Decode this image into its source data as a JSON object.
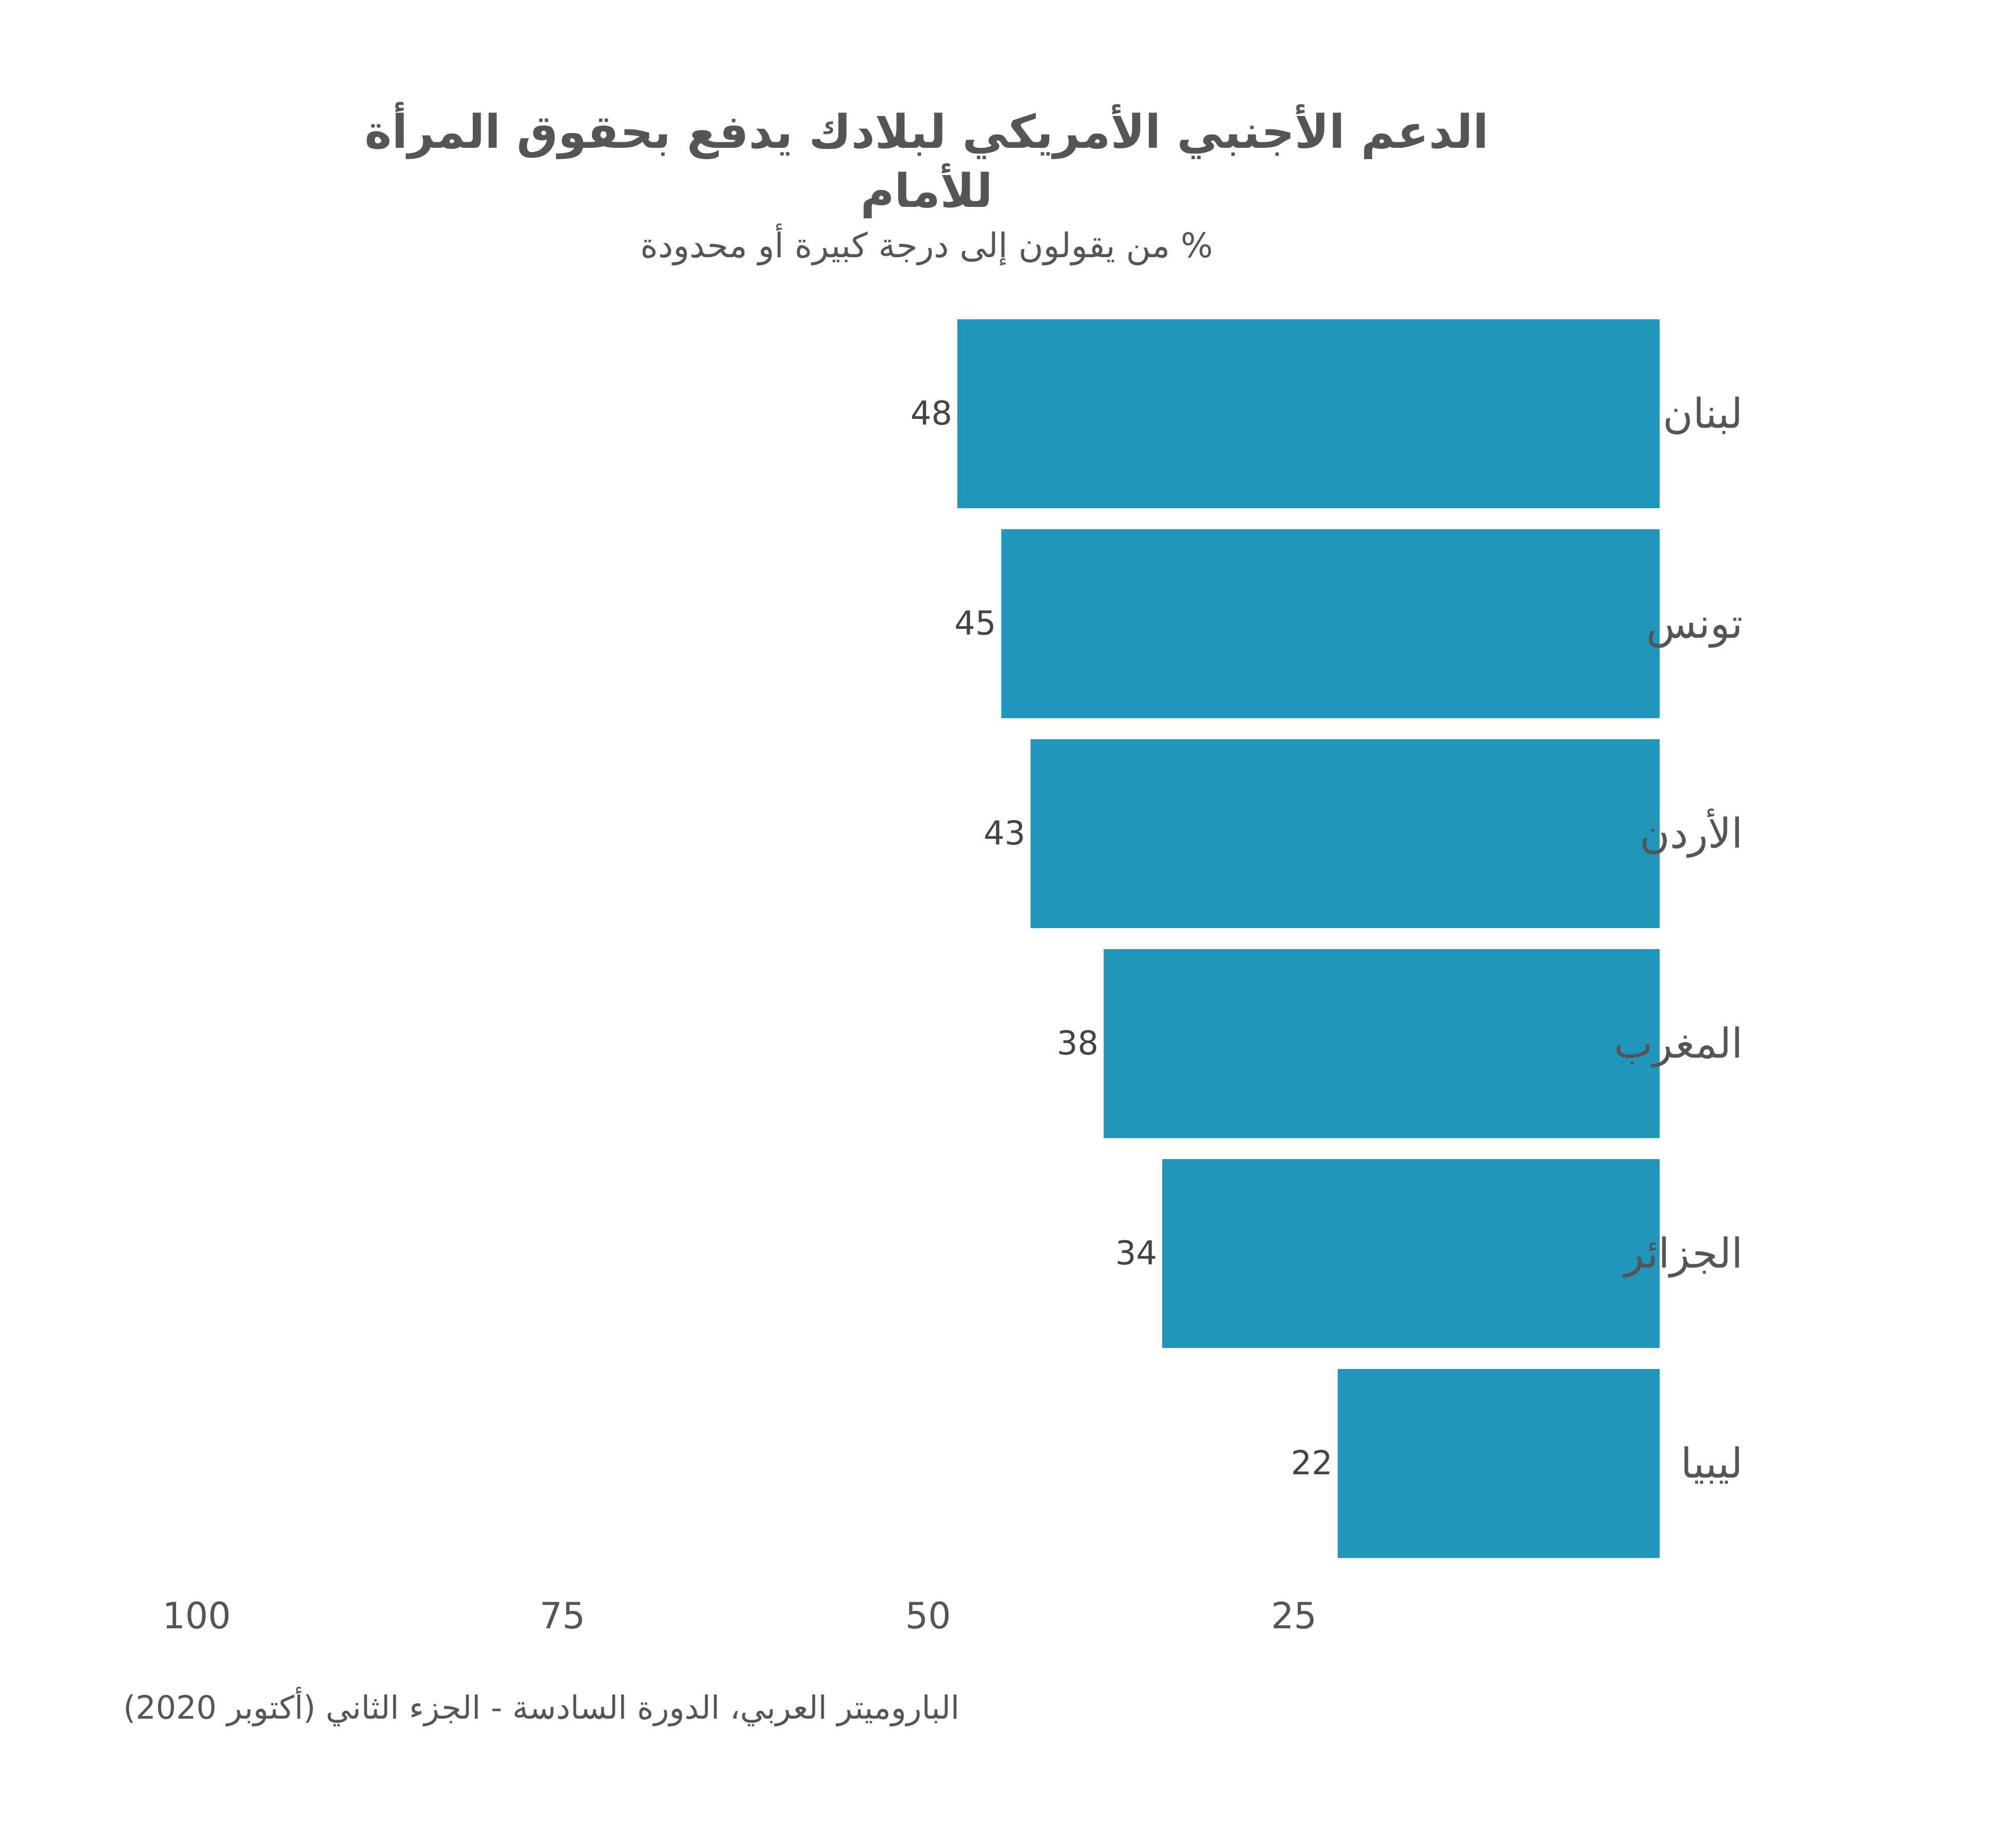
{
  "header": {
    "title_line1": "الدعم الأجنبي الأمريكي لبلادك يدفع بحقوق المرأة",
    "title_line2": "للأمام",
    "subtitle": "% من يقولون إلى درجة كبيرة أو محدودة"
  },
  "footer": {
    "source": "الباروميتر العربي، الدورة السادسة - الجزء الثاني (أكتوبر 2020)"
  },
  "colors": {
    "bar": "#2196BA",
    "text": "#555555"
  },
  "chart_data": {
    "type": "bar",
    "orientation": "horizontal",
    "direction": "right-to-left",
    "categories": [
      "لبنان",
      "تونس",
      "الأردن",
      "المغرب",
      "الجزائر",
      "ليبيا"
    ],
    "values": [
      48,
      45,
      43,
      38,
      34,
      22
    ],
    "title": "الدعم الأجنبي الأمريكي لبلادك يدفع بحقوق المرأة للأمام",
    "subtitle": "% من يقولون إلى درجة كبيرة أو محدودة",
    "xlim": [
      0,
      100
    ],
    "xticks": [
      100,
      75,
      50,
      25
    ],
    "grid": false,
    "legend": "none"
  }
}
